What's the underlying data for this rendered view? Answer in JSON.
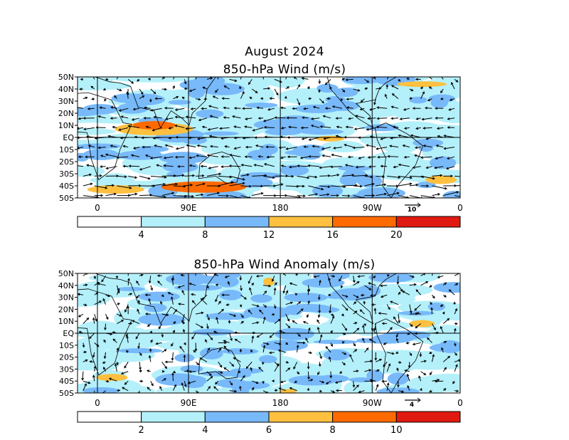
{
  "figure": {
    "title": "August 2024"
  },
  "panels": [
    {
      "id": "wind",
      "title": "850-hPa Wind (m/s)",
      "lat_labels": [
        "50N",
        "40N",
        "30N",
        "20N",
        "10N",
        "EQ",
        "10S",
        "20S",
        "30S",
        "40S",
        "50S"
      ],
      "lon_labels": [
        "0",
        "90E",
        "180",
        "90W",
        "0"
      ],
      "reference_vector": {
        "label": "10",
        "value": 10
      },
      "colorbar": {
        "ticks": [
          "4",
          "8",
          "12",
          "16",
          "20"
        ],
        "colors": [
          "#ffffff",
          "#b4f0fa",
          "#78b9fa",
          "#ffc040",
          "#ff6a00",
          "#e01a10"
        ]
      }
    },
    {
      "id": "anomaly",
      "title": "850-hPa Wind Anomaly (m/s)",
      "lat_labels": [
        "50N",
        "40N",
        "30N",
        "20N",
        "10N",
        "EQ",
        "10S",
        "20S",
        "30S",
        "40S",
        "50S"
      ],
      "lon_labels": [
        "0",
        "90E",
        "180",
        "90W",
        "0"
      ],
      "reference_vector": {
        "label": "4",
        "value": 4
      },
      "colorbar": {
        "ticks": [
          "2",
          "4",
          "6",
          "8",
          "10"
        ],
        "colors": [
          "#ffffff",
          "#b4f0fa",
          "#78b9fa",
          "#ffc040",
          "#ff6a00",
          "#e01a10"
        ]
      }
    }
  ]
}
